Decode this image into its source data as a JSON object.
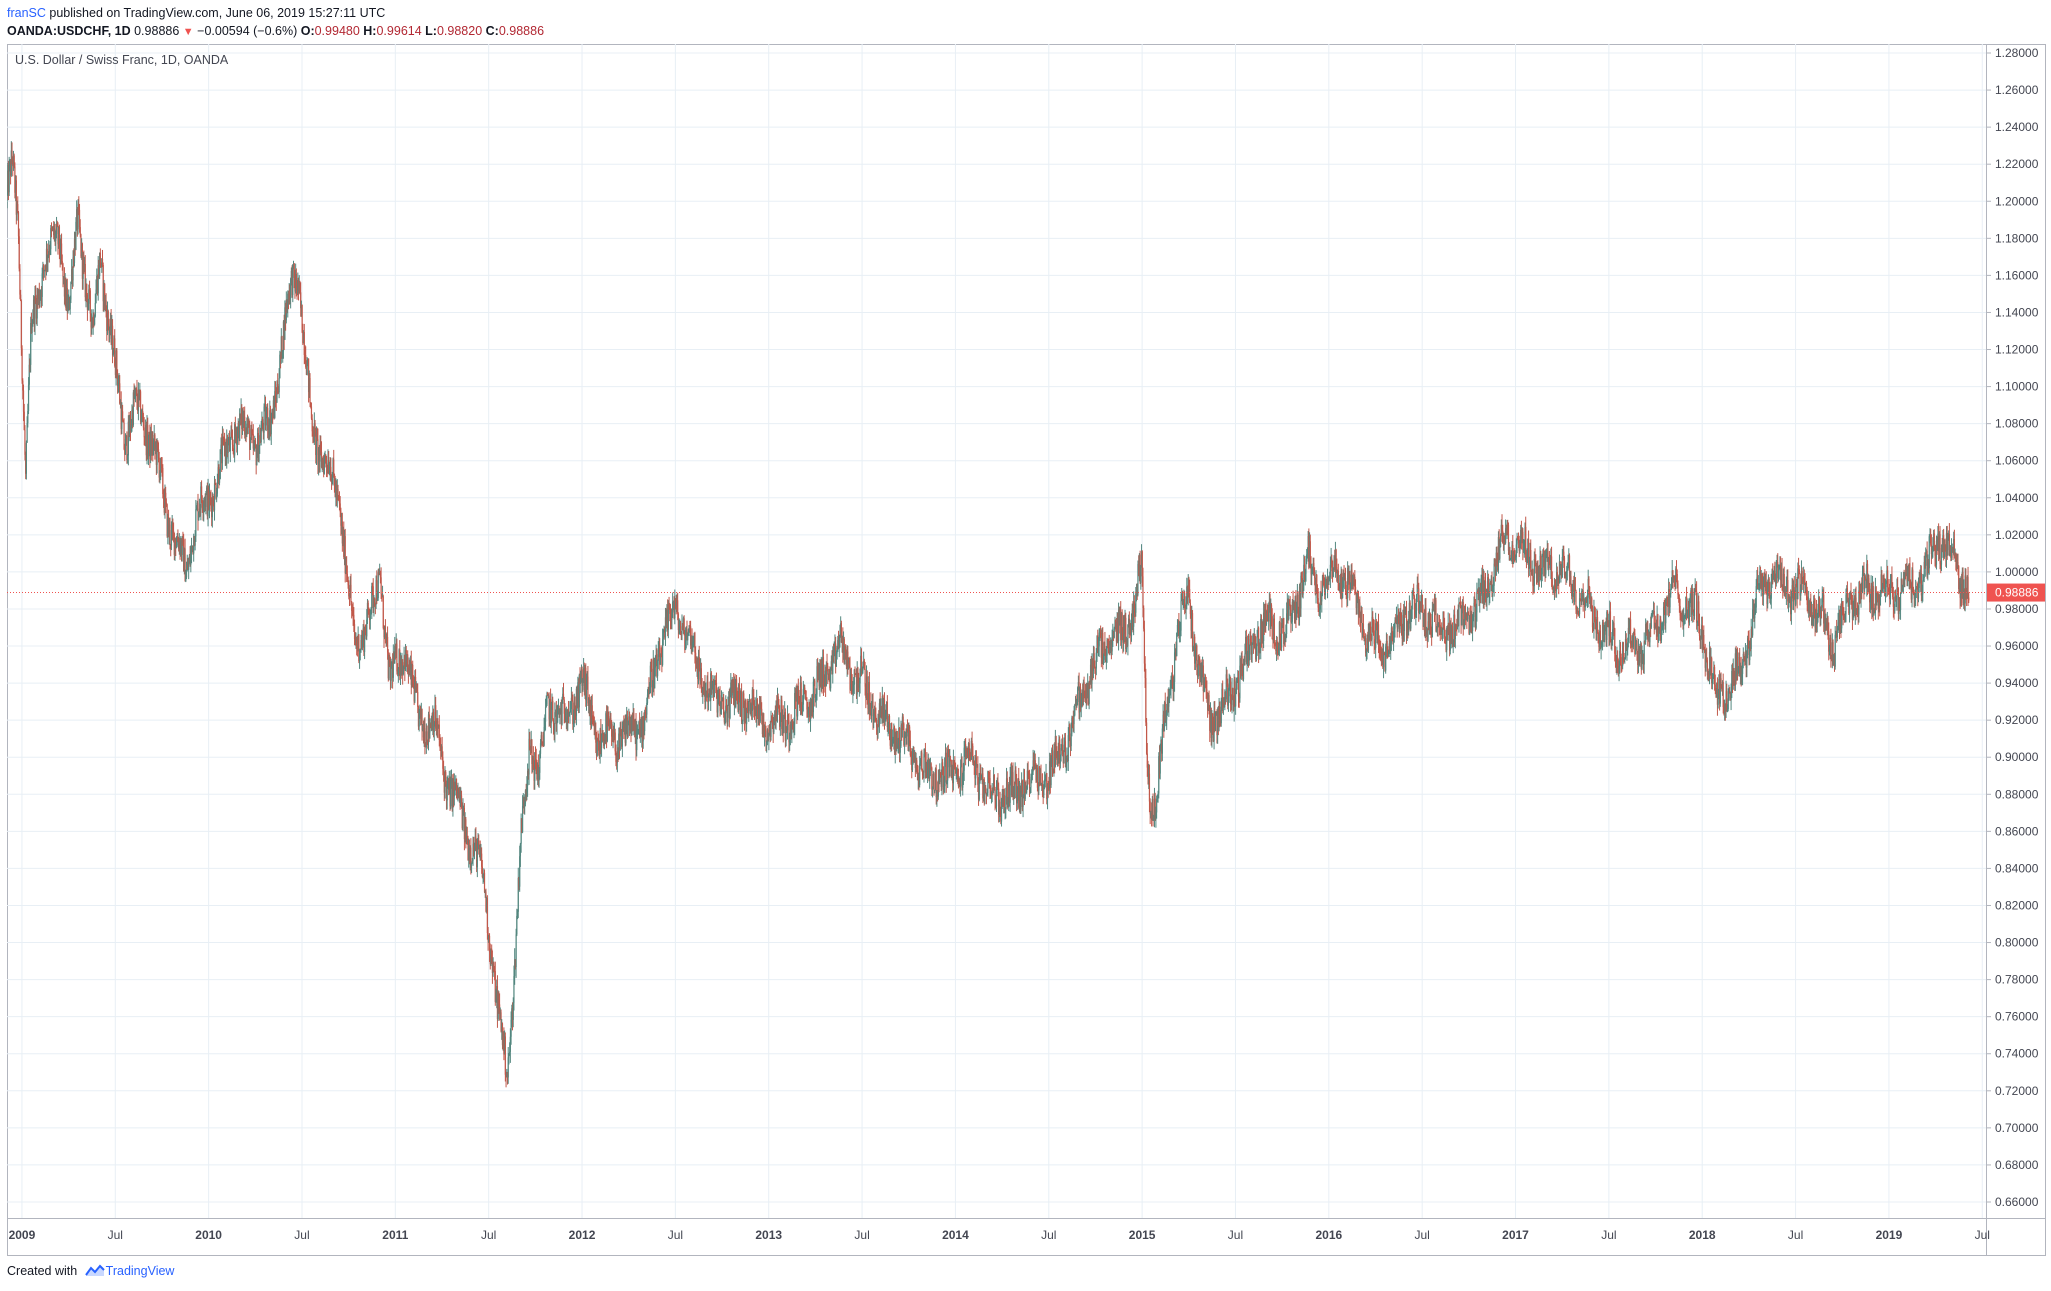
{
  "header": {
    "author": "franSC",
    "published_text": "published on TradingView.com, June 06, 2019 15:27:11 UTC",
    "symbol": "OANDA:USDCHF, 1D",
    "last": "0.98886",
    "change": "−0.00594 (−0.6%)",
    "o_label": "O:",
    "o_value": "0.99480",
    "h_label": "H:",
    "h_value": "0.99614",
    "l_label": "L:",
    "l_value": "0.98820",
    "c_label": "C:",
    "c_value": "0.98886"
  },
  "footer": {
    "created_with": "Created with",
    "brand": "TradingView"
  },
  "colors": {
    "up": "#53877f",
    "down": "#c1584a",
    "grid": "#e8eff5",
    "price_line": "#ef5350",
    "axis_text": "#434651",
    "border": "#b2b5be"
  },
  "chart_data": {
    "type": "candlestick",
    "title": "U.S. Dollar / Swiss Franc, 1D, OANDA",
    "ylim": [
      0.66,
      1.28
    ],
    "yticks": [
      "1.28000",
      "1.26000",
      "1.24000",
      "1.22000",
      "1.20000",
      "1.18000",
      "1.16000",
      "1.14000",
      "1.12000",
      "1.10000",
      "1.08000",
      "1.06000",
      "1.04000",
      "1.02000",
      "1.00000",
      "0.98000",
      "0.96000",
      "0.94000",
      "0.92000",
      "0.90000",
      "0.88000",
      "0.86000",
      "0.84000",
      "0.82000",
      "0.80000",
      "0.78000",
      "0.76000",
      "0.74000",
      "0.72000",
      "0.70000",
      "0.68000",
      "0.66000"
    ],
    "xticks": [
      {
        "label": "2009",
        "t": 2009.0,
        "bold": true
      },
      {
        "label": "Jul",
        "t": 2009.5,
        "bold": false
      },
      {
        "label": "2010",
        "t": 2010.0,
        "bold": true
      },
      {
        "label": "Jul",
        "t": 2010.5,
        "bold": false
      },
      {
        "label": "2011",
        "t": 2011.0,
        "bold": true
      },
      {
        "label": "Jul",
        "t": 2011.5,
        "bold": false
      },
      {
        "label": "2012",
        "t": 2012.0,
        "bold": true
      },
      {
        "label": "Jul",
        "t": 2012.5,
        "bold": false
      },
      {
        "label": "2013",
        "t": 2013.0,
        "bold": true
      },
      {
        "label": "Jul",
        "t": 2013.5,
        "bold": false
      },
      {
        "label": "2014",
        "t": 2014.0,
        "bold": true
      },
      {
        "label": "Jul",
        "t": 2014.5,
        "bold": false
      },
      {
        "label": "2015",
        "t": 2015.0,
        "bold": true
      },
      {
        "label": "Jul",
        "t": 2015.5,
        "bold": false
      },
      {
        "label": "2016",
        "t": 2016.0,
        "bold": true
      },
      {
        "label": "Jul",
        "t": 2016.5,
        "bold": false
      },
      {
        "label": "2017",
        "t": 2017.0,
        "bold": true
      },
      {
        "label": "Jul",
        "t": 2017.5,
        "bold": false
      },
      {
        "label": "2018",
        "t": 2018.0,
        "bold": true
      },
      {
        "label": "Jul",
        "t": 2018.5,
        "bold": false
      },
      {
        "label": "2019",
        "t": 2019.0,
        "bold": true
      },
      {
        "label": "Jul",
        "t": 2019.5,
        "bold": false
      }
    ],
    "last_price": 0.98886,
    "last_price_label": "0.98886",
    "series": [
      {
        "name": "USDCHF",
        "path": [
          [
            2008.92,
            1.2
          ],
          [
            2008.95,
            1.22
          ],
          [
            2008.98,
            1.19
          ],
          [
            2009.02,
            1.05
          ],
          [
            2009.05,
            1.13
          ],
          [
            2009.12,
            1.17
          ],
          [
            2009.2,
            1.18
          ],
          [
            2009.25,
            1.14
          ],
          [
            2009.3,
            1.19
          ],
          [
            2009.38,
            1.13
          ],
          [
            2009.42,
            1.17
          ],
          [
            2009.5,
            1.11
          ],
          [
            2009.55,
            1.07
          ],
          [
            2009.6,
            1.09
          ],
          [
            2009.7,
            1.07
          ],
          [
            2009.78,
            1.03
          ],
          [
            2009.88,
            1.0
          ],
          [
            2009.93,
            1.03
          ],
          [
            2010.0,
            1.04
          ],
          [
            2010.08,
            1.06
          ],
          [
            2010.15,
            1.08
          ],
          [
            2010.25,
            1.07
          ],
          [
            2010.33,
            1.08
          ],
          [
            2010.45,
            1.16
          ],
          [
            2010.48,
            1.16
          ],
          [
            2010.55,
            1.08
          ],
          [
            2010.62,
            1.06
          ],
          [
            2010.7,
            1.04
          ],
          [
            2010.78,
            0.96
          ],
          [
            2010.88,
            0.98
          ],
          [
            2010.92,
            1.0
          ],
          [
            2010.97,
            0.94
          ],
          [
            2011.05,
            0.96
          ],
          [
            2011.12,
            0.92
          ],
          [
            2011.2,
            0.92
          ],
          [
            2011.27,
            0.89
          ],
          [
            2011.35,
            0.87
          ],
          [
            2011.42,
            0.85
          ],
          [
            2011.48,
            0.83
          ],
          [
            2011.55,
            0.76
          ],
          [
            2011.6,
            0.73
          ],
          [
            2011.64,
            0.79
          ],
          [
            2011.67,
            0.85
          ],
          [
            2011.72,
            0.91
          ],
          [
            2011.77,
            0.89
          ],
          [
            2011.82,
            0.93
          ],
          [
            2011.9,
            0.92
          ],
          [
            2012.0,
            0.94
          ],
          [
            2012.08,
            0.91
          ],
          [
            2012.15,
            0.91
          ],
          [
            2012.22,
            0.91
          ],
          [
            2012.33,
            0.92
          ],
          [
            2012.42,
            0.96
          ],
          [
            2012.5,
            0.98
          ],
          [
            2012.55,
            0.97
          ],
          [
            2012.62,
            0.95
          ],
          [
            2012.7,
            0.93
          ],
          [
            2012.8,
            0.93
          ],
          [
            2012.88,
            0.93
          ],
          [
            2012.97,
            0.92
          ],
          [
            2013.08,
            0.92
          ],
          [
            2013.2,
            0.93
          ],
          [
            2013.28,
            0.94
          ],
          [
            2013.38,
            0.96
          ],
          [
            2013.42,
            0.95
          ],
          [
            2013.5,
            0.94
          ],
          [
            2013.6,
            0.92
          ],
          [
            2013.72,
            0.91
          ],
          [
            2013.85,
            0.89
          ],
          [
            2013.97,
            0.89
          ],
          [
            2014.08,
            0.9
          ],
          [
            2014.18,
            0.88
          ],
          [
            2014.3,
            0.88
          ],
          [
            2014.42,
            0.89
          ],
          [
            2014.5,
            0.89
          ],
          [
            2014.6,
            0.91
          ],
          [
            2014.7,
            0.94
          ],
          [
            2014.8,
            0.96
          ],
          [
            2014.92,
            0.97
          ],
          [
            2015.0,
            1.0
          ],
          [
            2015.03,
            0.89
          ],
          [
            2015.07,
            0.87
          ],
          [
            2015.12,
            0.92
          ],
          [
            2015.2,
            0.97
          ],
          [
            2015.25,
            0.99
          ],
          [
            2015.3,
            0.95
          ],
          [
            2015.37,
            0.92
          ],
          [
            2015.45,
            0.93
          ],
          [
            2015.55,
            0.95
          ],
          [
            2015.63,
            0.97
          ],
          [
            2015.7,
            0.97
          ],
          [
            2015.8,
            0.97
          ],
          [
            2015.88,
            1.01
          ],
          [
            2015.93,
            0.99
          ],
          [
            2016.0,
            1.0
          ],
          [
            2016.08,
            1.0
          ],
          [
            2016.15,
            0.98
          ],
          [
            2016.25,
            0.96
          ],
          [
            2016.33,
            0.96
          ],
          [
            2016.42,
            0.98
          ],
          [
            2016.5,
            0.98
          ],
          [
            2016.6,
            0.97
          ],
          [
            2016.7,
            0.97
          ],
          [
            2016.8,
            0.98
          ],
          [
            2016.88,
            1.0
          ],
          [
            2016.95,
            1.02
          ],
          [
            2017.05,
            1.01
          ],
          [
            2017.15,
            1.0
          ],
          [
            2017.25,
            1.0
          ],
          [
            2017.35,
            0.99
          ],
          [
            2017.45,
            0.97
          ],
          [
            2017.55,
            0.96
          ],
          [
            2017.65,
            0.96
          ],
          [
            2017.75,
            0.97
          ],
          [
            2017.85,
            0.99
          ],
          [
            2017.95,
            0.98
          ],
          [
            2018.02,
            0.96
          ],
          [
            2018.08,
            0.93
          ],
          [
            2018.15,
            0.94
          ],
          [
            2018.22,
            0.95
          ],
          [
            2018.3,
            0.99
          ],
          [
            2018.38,
            1.0
          ],
          [
            2018.45,
            0.99
          ],
          [
            2018.55,
            0.99
          ],
          [
            2018.62,
            0.98
          ],
          [
            2018.7,
            0.96
          ],
          [
            2018.78,
            0.98
          ],
          [
            2018.85,
            0.99
          ],
          [
            2018.95,
            0.99
          ],
          [
            2019.05,
            0.99
          ],
          [
            2019.12,
            0.99
          ],
          [
            2019.2,
            1.0
          ],
          [
            2019.27,
            1.02
          ],
          [
            2019.32,
            1.01
          ],
          [
            2019.38,
            1.0
          ],
          [
            2019.43,
            0.98886
          ]
        ]
      }
    ]
  }
}
